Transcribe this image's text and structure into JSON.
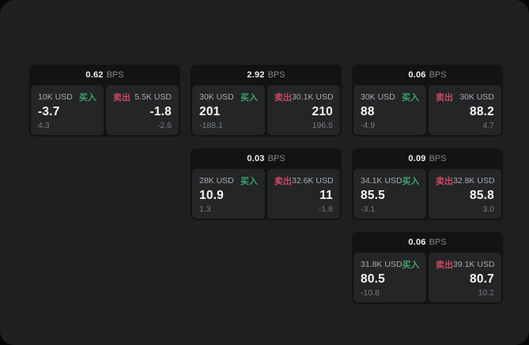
{
  "labels": {
    "bps_unit": "BPS",
    "buy": "买入",
    "sell": "卖出"
  },
  "colors": {
    "buy_green": "#3fa46a",
    "sell_red": "#c84a60",
    "panel_background": "#1d1f20",
    "card_background": "#121314",
    "subpanel_background": "#232527"
  },
  "cards": [
    {
      "row": 1,
      "col": 1,
      "bps": "0.62",
      "buy": {
        "size": "10K USD",
        "value": "-3.7",
        "delta": "4.3"
      },
      "sell": {
        "size": "5.5K USD",
        "value": "-1.8",
        "delta": "-2.6"
      }
    },
    {
      "row": 1,
      "col": 2,
      "bps": "2.92",
      "buy": {
        "size": "30K USD",
        "value": "201",
        "delta": "-188.1"
      },
      "sell": {
        "size": "30.1K USD",
        "value": "210",
        "delta": "196.5"
      }
    },
    {
      "row": 1,
      "col": 3,
      "bps": "0.06",
      "buy": {
        "size": "30K USD",
        "value": "88",
        "delta": "-4.9"
      },
      "sell": {
        "size": "30K USD",
        "value": "88.2",
        "delta": "4.7"
      }
    },
    {
      "row": 2,
      "col": 2,
      "bps": "0.03",
      "buy": {
        "size": "28K USD",
        "value": "10.9",
        "delta": "1.3"
      },
      "sell": {
        "size": "32.6K USD",
        "value": "11",
        "delta": "-1.8"
      }
    },
    {
      "row": 2,
      "col": 3,
      "bps": "0.09",
      "buy": {
        "size": "34.1K USD",
        "value": "85.5",
        "delta": "-3.1"
      },
      "sell": {
        "size": "32.8K USD",
        "value": "85.8",
        "delta": "3.0"
      }
    },
    {
      "row": 3,
      "col": 3,
      "bps": "0.06",
      "buy": {
        "size": "31.8K USD",
        "value": "80.5",
        "delta": "-10.8"
      },
      "sell": {
        "size": "39.1K USD",
        "value": "80.7",
        "delta": "10.2"
      }
    }
  ]
}
